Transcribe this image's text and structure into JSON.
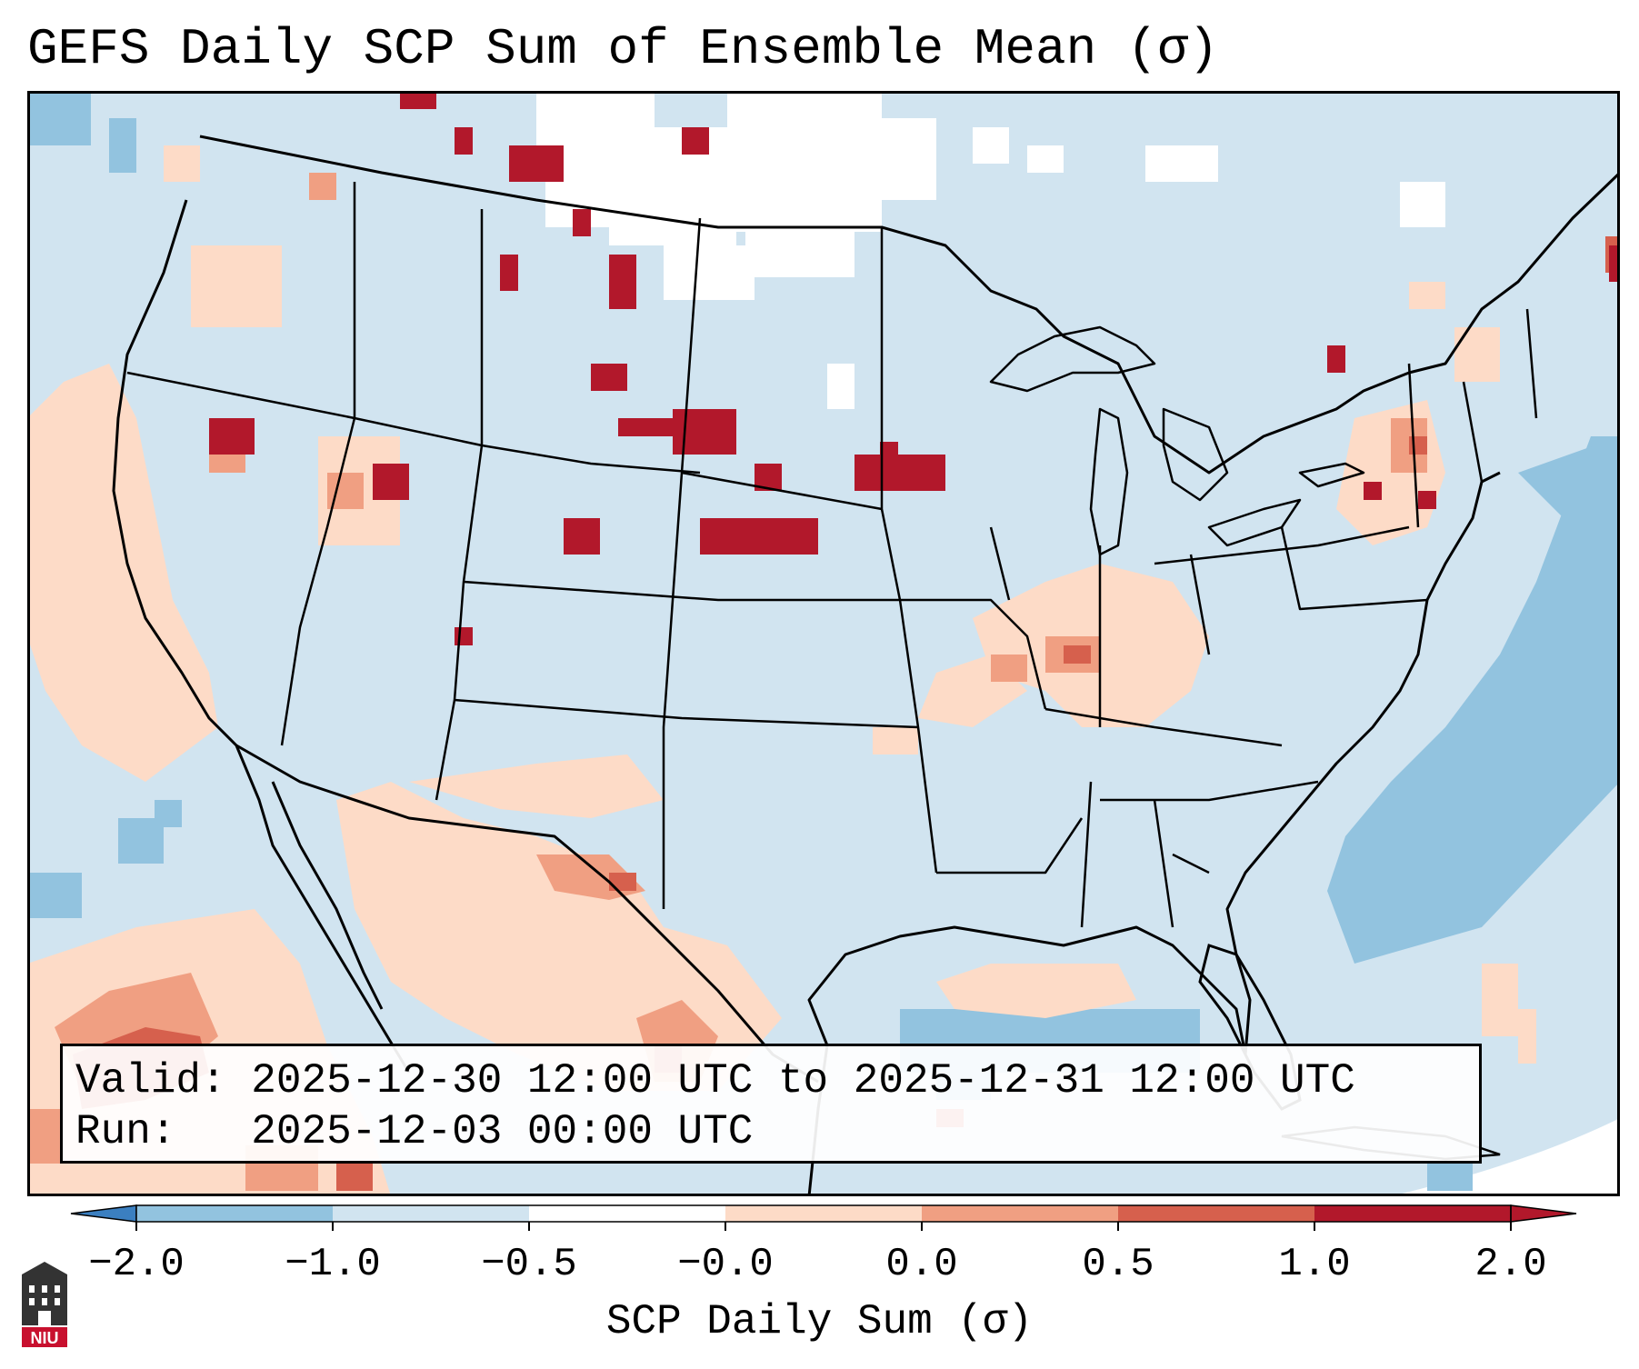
{
  "title": "GEFS Daily SCP Sum of Ensemble Mean (σ)",
  "info": {
    "valid_label": "Valid:",
    "valid_value": "2025-12-30 12:00 UTC to 2025-12-31 12:00 UTC",
    "run_label": "Run:",
    "run_value": "2025-12-03 00:00 UTC"
  },
  "colorbar": {
    "label": "SCP Daily Sum (σ)",
    "ticks": [
      "−2.0",
      "−1.0",
      "−0.5",
      "−0.0",
      "0.0",
      "0.5",
      "1.0",
      "2.0"
    ],
    "colors": [
      "#3b7fc0",
      "#92c3df",
      "#d1e4f0",
      "#ffffff",
      "#fddbc7",
      "#f09f82",
      "#d6604d",
      "#b2182b"
    ]
  },
  "logo": {
    "text": "NIU"
  },
  "colors": {
    "background_ocean": "#d1e4f0",
    "land_base": "#d1e4f0",
    "mid_blue": "#92c3df",
    "light_red": "#fddbc7",
    "mid_red": "#f09f82",
    "red": "#d6604d",
    "dark_red": "#b2182b"
  }
}
